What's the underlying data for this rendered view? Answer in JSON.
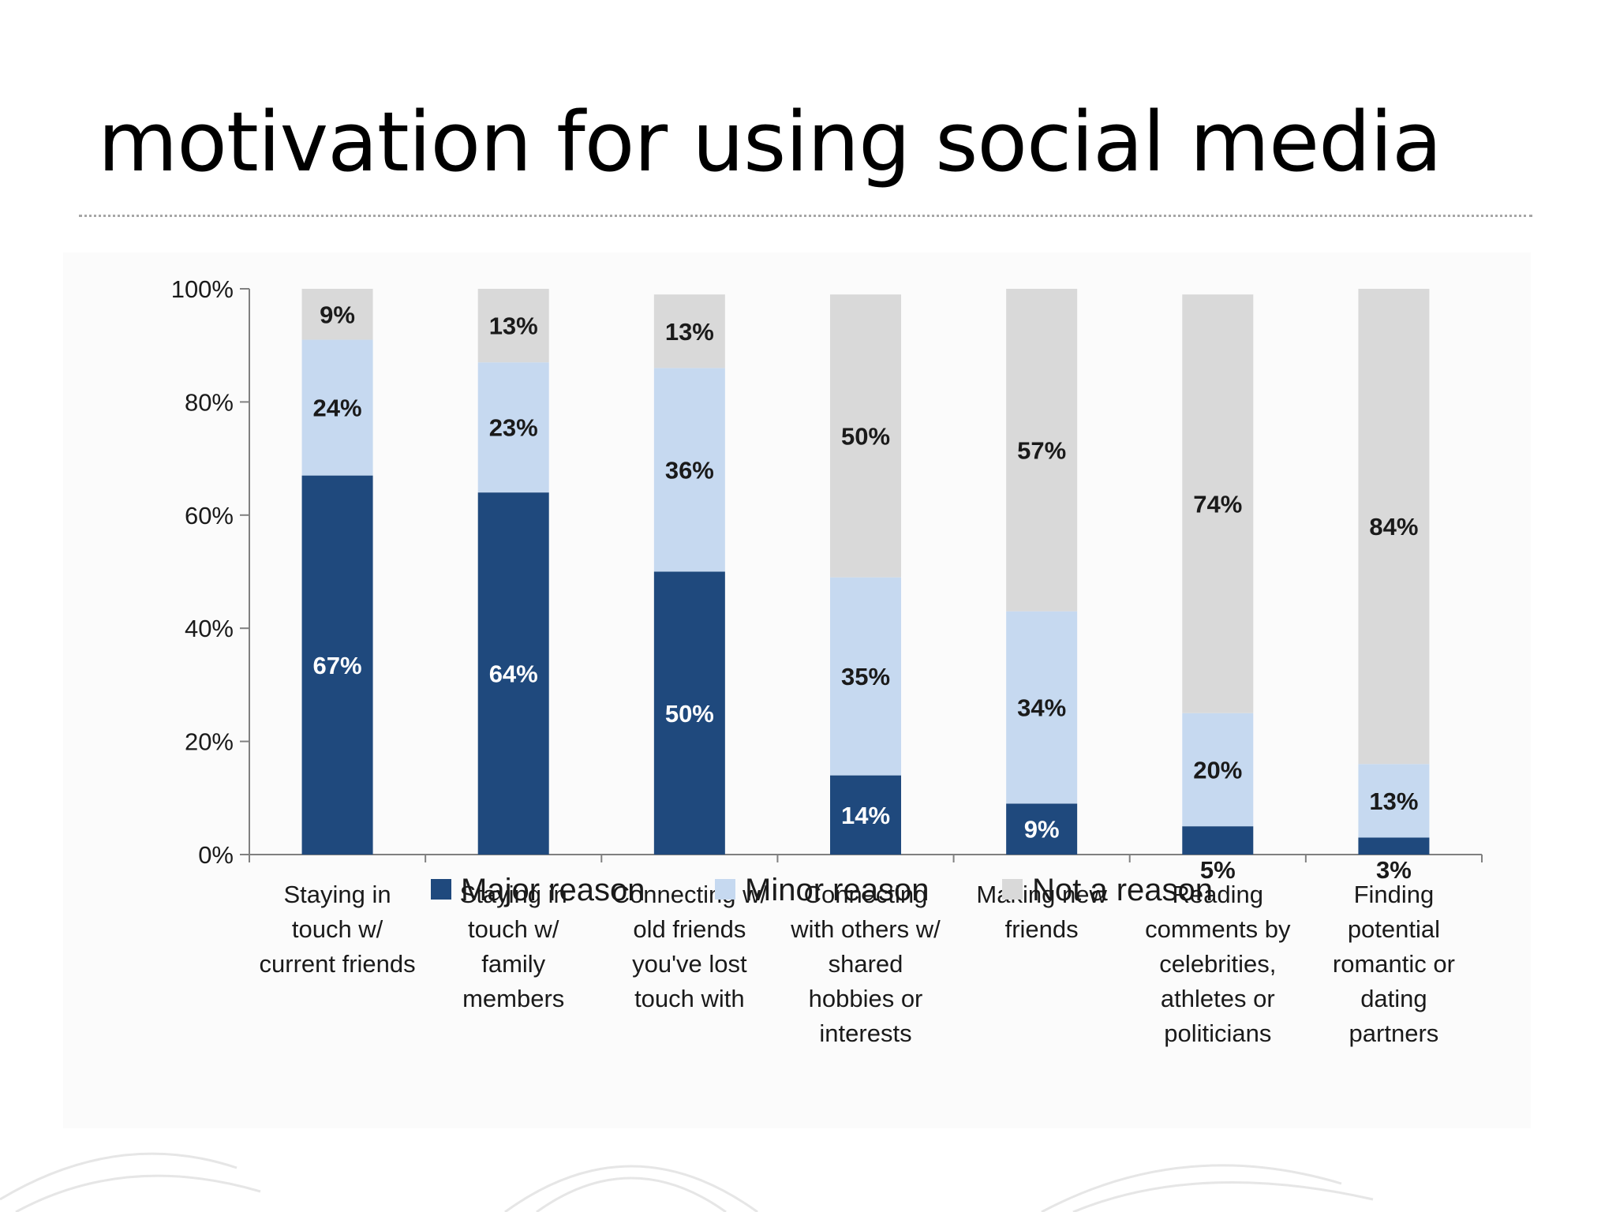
{
  "slide": {
    "title": "motivation for using social media"
  },
  "chart_data": {
    "type": "bar",
    "stacked": true,
    "categories": [
      [
        "Staying in",
        "touch w/",
        "current friends"
      ],
      [
        "Staying in",
        "touch w/",
        "family",
        "members"
      ],
      [
        "Connecting w/",
        "old friends",
        "you've lost",
        "touch with"
      ],
      [
        "Connecting",
        "with others w/",
        "shared",
        "hobbies or",
        "interests"
      ],
      [
        "Making new",
        "friends"
      ],
      [
        "Reading",
        "comments by",
        "celebrities,",
        "athletes or",
        "politicians"
      ],
      [
        "Finding",
        "potential",
        "romantic or",
        "dating",
        "partners"
      ]
    ],
    "series": [
      {
        "name": "Major reason",
        "color": "#1f497d",
        "values": [
          67,
          64,
          50,
          14,
          9,
          5,
          3
        ],
        "labels": [
          "67%",
          "64%",
          "50%",
          "14%",
          "9%",
          "5%",
          "3%"
        ]
      },
      {
        "name": "Minor reason",
        "color": "#c6d9f0",
        "values": [
          24,
          23,
          36,
          35,
          34,
          20,
          13
        ],
        "labels": [
          "24%",
          "23%",
          "36%",
          "35%",
          "34%",
          "20%",
          "13%"
        ]
      },
      {
        "name": "Not a reason",
        "color": "#d9d9d9",
        "values": [
          9,
          13,
          13,
          50,
          57,
          74,
          84
        ],
        "labels": [
          "9%",
          "13%",
          "13%",
          "50%",
          "57%",
          "74%",
          "84%"
        ]
      }
    ],
    "yticks": [
      "0%",
      "20%",
      "40%",
      "60%",
      "80%",
      "100%"
    ],
    "ylim": [
      0,
      100
    ],
    "legend_position": "bottom",
    "grid": false
  }
}
